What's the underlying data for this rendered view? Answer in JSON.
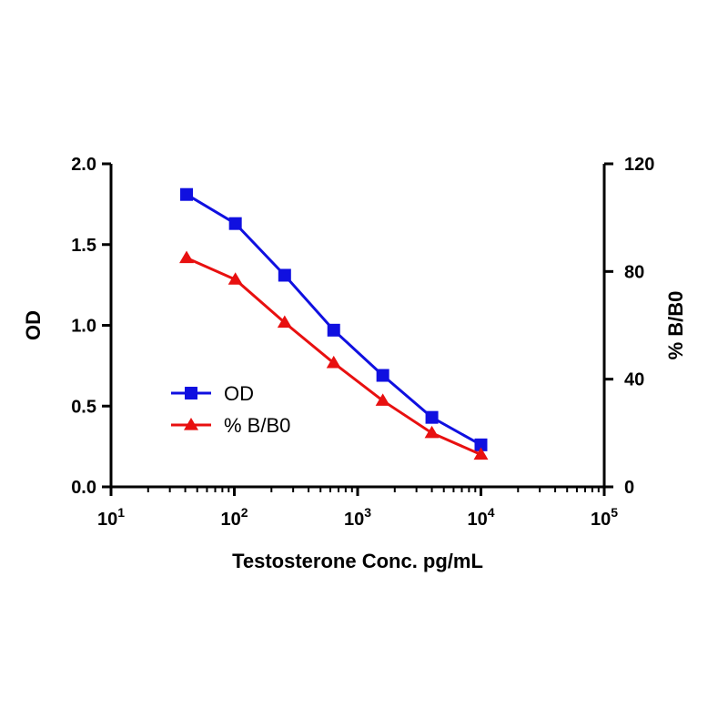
{
  "chart_data": {
    "type": "line",
    "x_scale": "log",
    "xlabel": "Testosterone Conc. pg/mL",
    "ylabel_left": "OD",
    "ylabel_right": "% B/B0",
    "xlim": [
      10,
      100000
    ],
    "ylim_left": [
      0,
      2.0
    ],
    "ylim_right": [
      0,
      120
    ],
    "x_ticks": [
      {
        "value": 10,
        "base": "10",
        "exp": "1"
      },
      {
        "value": 100,
        "base": "10",
        "exp": "2"
      },
      {
        "value": 1000,
        "base": "10",
        "exp": "3"
      },
      {
        "value": 10000,
        "base": "10",
        "exp": "4"
      },
      {
        "value": 100000,
        "base": "10",
        "exp": "5"
      }
    ],
    "y_ticks_left": [
      "0.0",
      "0.5",
      "1.0",
      "1.5",
      "2.0"
    ],
    "y_ticks_right": [
      "0",
      "40",
      "80",
      "120"
    ],
    "x": [
      41,
      102,
      256,
      640,
      1600,
      4000,
      10000
    ],
    "series": [
      {
        "name": "OD",
        "axis": "left",
        "marker": "square",
        "color": "#1010e0",
        "values": [
          1.81,
          1.63,
          1.31,
          0.97,
          0.69,
          0.43,
          0.26
        ]
      },
      {
        "name": "% B/B0",
        "axis": "right",
        "marker": "triangle",
        "color": "#e81010",
        "values": [
          85,
          77,
          61,
          46,
          32,
          20,
          12
        ]
      }
    ],
    "legend_position": "lower-left",
    "grid": false
  }
}
